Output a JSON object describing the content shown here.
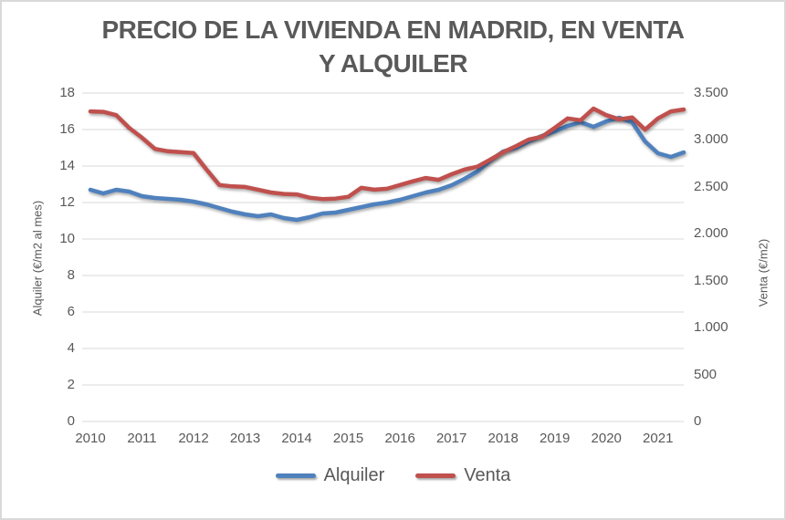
{
  "chart_data": {
    "type": "line",
    "title": "PRECIO DE LA VIVIENDA EN MADRID, EN VENTA Y ALQUILER",
    "x": [
      2010,
      2010.25,
      2010.5,
      2010.75,
      2011,
      2011.25,
      2011.5,
      2011.75,
      2012,
      2012.25,
      2012.5,
      2012.75,
      2013,
      2013.25,
      2013.5,
      2013.75,
      2014,
      2014.25,
      2014.5,
      2014.75,
      2015,
      2015.25,
      2015.5,
      2015.75,
      2016,
      2016.25,
      2016.5,
      2016.75,
      2017,
      2017.25,
      2017.5,
      2017.75,
      2018,
      2018.25,
      2018.5,
      2018.75,
      2019,
      2019.25,
      2019.5,
      2019.75,
      2020,
      2020.25,
      2020.5,
      2020.75,
      2021,
      2021.25,
      2021.5
    ],
    "x_tick_labels": [
      "2010",
      "2011",
      "2012",
      "2013",
      "2014",
      "2015",
      "2016",
      "2017",
      "2018",
      "2019",
      "2020",
      "2021"
    ],
    "series": [
      {
        "name": "Alquiler",
        "axis": "left",
        "color": "#4F81BD",
        "values": [
          12.7,
          12.5,
          12.7,
          12.6,
          12.35,
          12.25,
          12.2,
          12.15,
          12.05,
          11.9,
          11.7,
          11.5,
          11.35,
          11.25,
          11.35,
          11.15,
          11.05,
          11.2,
          11.4,
          11.45,
          11.6,
          11.75,
          11.9,
          12.0,
          12.15,
          12.35,
          12.55,
          12.7,
          12.95,
          13.3,
          13.7,
          14.3,
          14.8,
          15.0,
          15.35,
          15.65,
          15.9,
          16.2,
          16.4,
          16.15,
          16.45,
          16.65,
          16.4,
          15.35,
          14.7,
          14.5,
          14.75
        ]
      },
      {
        "name": "Venta",
        "axis": "right",
        "color": "#C0504D",
        "values": [
          3305,
          3300,
          3265,
          3130,
          3025,
          2905,
          2880,
          2870,
          2860,
          2685,
          2520,
          2505,
          2500,
          2470,
          2440,
          2425,
          2420,
          2385,
          2370,
          2375,
          2395,
          2490,
          2470,
          2480,
          2520,
          2560,
          2595,
          2575,
          2635,
          2685,
          2715,
          2790,
          2870,
          2935,
          3005,
          3035,
          3130,
          3230,
          3210,
          3335,
          3265,
          3220,
          3240,
          3110,
          3230,
          3305,
          3325
        ]
      }
    ],
    "left_axis": {
      "title": "Alquiler (€/m2 al mes)",
      "min": 0,
      "max": 18,
      "step": 2,
      "tick_labels": [
        "0",
        "2",
        "4",
        "6",
        "8",
        "10",
        "12",
        "14",
        "16",
        "18"
      ]
    },
    "right_axis": {
      "title": "Venta (€/m2)",
      "min": 0,
      "max": 3500,
      "step": 500,
      "tick_labels": [
        "0",
        "500",
        "1.000",
        "1.500",
        "2.000",
        "2.500",
        "3.000",
        "3.500"
      ]
    },
    "legend": {
      "position": "bottom",
      "entries": [
        {
          "label": "Alquiler",
          "color": "#4F81BD"
        },
        {
          "label": "Venta",
          "color": "#C0504D"
        }
      ]
    },
    "grid": true,
    "gridline_color": "#D9D9D9",
    "text_color": "#595959"
  }
}
